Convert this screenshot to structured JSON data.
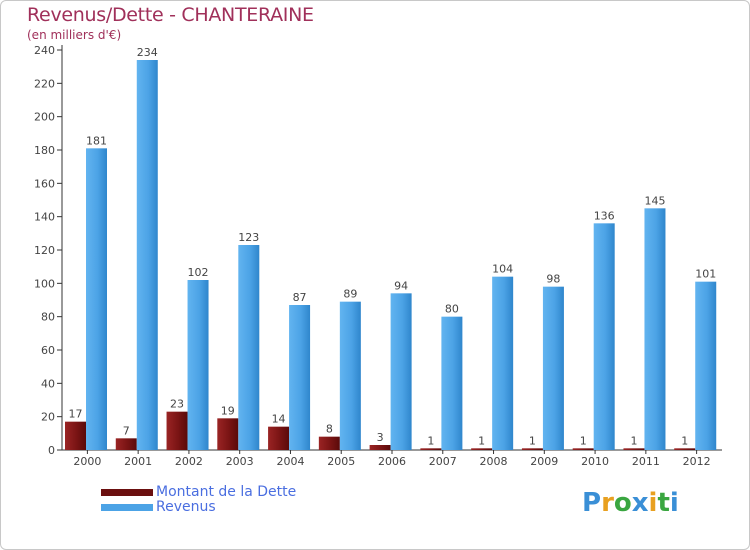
{
  "chart_data": {
    "type": "bar",
    "title": "Revenus/Dette - CHANTERAINE",
    "subtitle": "(en milliers d'€)",
    "categories": [
      "2000",
      "2001",
      "2002",
      "2003",
      "2004",
      "2005",
      "2006",
      "2007",
      "2008",
      "2009",
      "2010",
      "2011",
      "2012"
    ],
    "series": [
      {
        "name": "Montant de la Dette",
        "values": [
          17,
          7,
          23,
          19,
          14,
          8,
          3,
          1,
          1,
          1,
          1,
          1,
          1
        ],
        "color": "#7a1414"
      },
      {
        "name": "Revenus",
        "values": [
          181,
          234,
          102,
          123,
          87,
          89,
          94,
          80,
          104,
          98,
          136,
          145,
          101
        ],
        "color": "#4ca3e6"
      }
    ],
    "ylim": [
      0,
      240
    ],
    "yticks": [
      0,
      20,
      40,
      60,
      80,
      100,
      120,
      140,
      160,
      180,
      200,
      220,
      240
    ],
    "grid": false,
    "legend_position": "bottom-left"
  },
  "logo": {
    "letters": [
      "P",
      "r",
      "o",
      "x",
      "i",
      "t",
      "i"
    ],
    "colors": [
      "#3a8fd6",
      "#e8a020",
      "#3aa640",
      "#3a8fd6",
      "#e8a020",
      "#3aa640",
      "#3a8fd6"
    ]
  }
}
